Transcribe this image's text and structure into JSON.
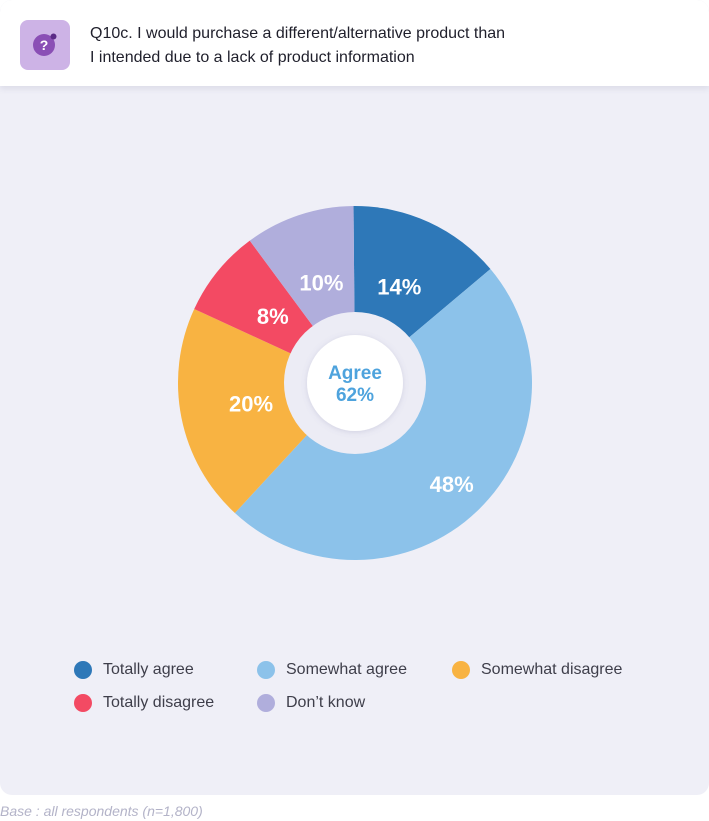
{
  "question": {
    "icon": "question-mark-icon",
    "text": "Q10c. I would purchase a different/alternative product than\n I intended due to a lack of product information"
  },
  "center_label": {
    "title": "Agree",
    "value": "62%"
  },
  "base_note": "Base : all respondents (n=1,800)",
  "colors": {
    "totally_agree": "#2e78b8",
    "somewhat_agree": "#8cc2ea",
    "somewhat_disagree": "#f8b342",
    "totally_disagree": "#f34a63",
    "dont_know": "#b0aedc",
    "center_text": "#4ea3dd"
  },
  "chart_data": {
    "type": "pie",
    "donut": true,
    "labels": [
      "Totally agree",
      "Somewhat agree",
      "Somewhat disagree",
      "Totally disagree",
      "Don’t know"
    ],
    "values": [
      14,
      48,
      20,
      8,
      10
    ],
    "data_labels": [
      "14%",
      "48%",
      "20%",
      "8%",
      "10%"
    ],
    "colors": [
      "#2e78b8",
      "#8cc2ea",
      "#f8b342",
      "#f34a63",
      "#b0aedc"
    ],
    "legend_position": "bottom"
  }
}
